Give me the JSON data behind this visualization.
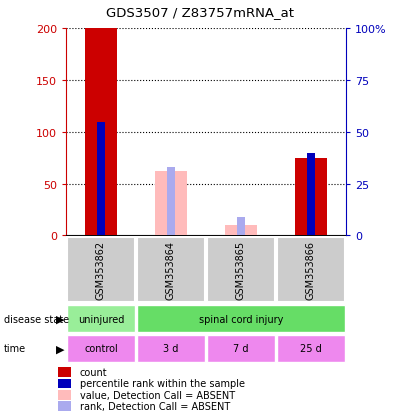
{
  "title": "GDS3507 / Z83757mRNA_at",
  "samples": [
    "GSM353862",
    "GSM353864",
    "GSM353865",
    "GSM353866"
  ],
  "count_values": [
    200,
    0,
    0,
    75
  ],
  "percentile_values": [
    55,
    0,
    0,
    40
  ],
  "value_absent": [
    0,
    62,
    10,
    0
  ],
  "rank_absent": [
    0,
    33,
    9,
    0
  ],
  "ylim_left": [
    0,
    200
  ],
  "ylim_right": [
    0,
    100
  ],
  "yticks_left": [
    0,
    50,
    100,
    150,
    200
  ],
  "yticks_right": [
    0,
    25,
    50,
    75,
    100
  ],
  "ytick_labels_right": [
    "0",
    "25",
    "50",
    "75",
    "100%"
  ],
  "disease_state_labels": [
    "uninjured",
    "spinal cord injury"
  ],
  "time_labels": [
    "control",
    "3 d",
    "7 d",
    "25 d"
  ],
  "color_count": "#cc0000",
  "color_percentile": "#0000bb",
  "color_value_absent": "#ffbbbb",
  "color_rank_absent": "#aaaaee",
  "color_disease_uninjured": "#99ee99",
  "color_disease_spinal": "#66dd66",
  "color_time": "#ee88ee",
  "color_sample_bg": "#cccccc",
  "legend_items": [
    {
      "label": "count",
      "color": "#cc0000"
    },
    {
      "label": "percentile rank within the sample",
      "color": "#0000bb"
    },
    {
      "label": "value, Detection Call = ABSENT",
      "color": "#ffbbbb"
    },
    {
      "label": "rank, Detection Call = ABSENT",
      "color": "#aaaaee"
    }
  ]
}
